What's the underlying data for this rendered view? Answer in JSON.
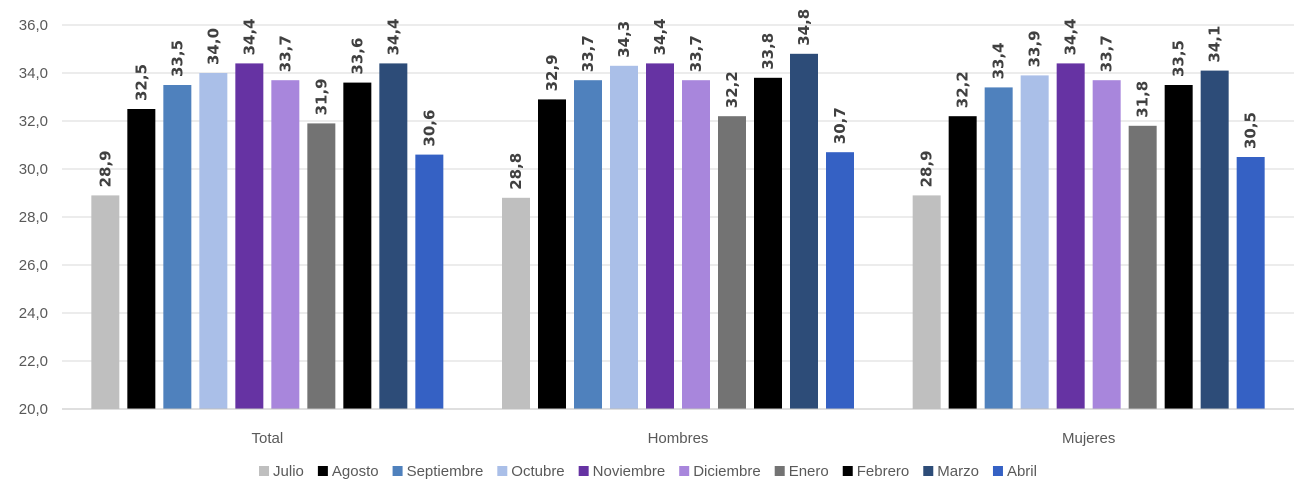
{
  "chart_data": {
    "type": "bar",
    "title": "",
    "xlabel": "",
    "ylabel": "",
    "categories": [
      "Total",
      "Hombres",
      "Mujeres"
    ],
    "ylim": [
      20,
      36
    ],
    "yticks": [
      "20,0",
      "22,0",
      "24,0",
      "26,0",
      "28,0",
      "30,0",
      "32,0",
      "34,0",
      "36,0"
    ],
    "ytick_values": [
      20,
      22,
      24,
      26,
      28,
      30,
      32,
      34,
      36
    ],
    "grid": true,
    "legend_position": "bottom",
    "series": [
      {
        "name": "Julio",
        "color": "#bfbfbf",
        "values": [
          28.9,
          28.8,
          28.9
        ],
        "labels": [
          "28,9",
          "28,8",
          "28,9"
        ]
      },
      {
        "name": "Agosto",
        "color": "#000000",
        "values": [
          32.5,
          32.9,
          32.2
        ],
        "labels": [
          "32,5",
          "32,9",
          "32,2"
        ]
      },
      {
        "name": "Septiembre",
        "color": "#4f81bd",
        "values": [
          33.5,
          33.7,
          33.4
        ],
        "labels": [
          "33,5",
          "33,7",
          "33,4"
        ]
      },
      {
        "name": "Octubre",
        "color": "#aabfe8",
        "values": [
          34.0,
          34.3,
          33.9
        ],
        "labels": [
          "34,0",
          "34,3",
          "33,9"
        ]
      },
      {
        "name": "Noviembre",
        "color": "#6633a3",
        "values": [
          34.4,
          34.4,
          34.4
        ],
        "labels": [
          "34,4",
          "34,4",
          "34,4"
        ]
      },
      {
        "name": "Diciembre",
        "color": "#a886dc",
        "values": [
          33.7,
          33.7,
          33.7
        ],
        "labels": [
          "33,7",
          "33,7",
          "33,7"
        ]
      },
      {
        "name": "Enero",
        "color": "#737373",
        "values": [
          31.9,
          32.2,
          31.8
        ],
        "labels": [
          "31,9",
          "32,2",
          "31,8"
        ]
      },
      {
        "name": "Febrero",
        "color": "#000000",
        "values": [
          33.6,
          33.8,
          33.5
        ],
        "labels": [
          "33,6",
          "33,8",
          "33,5"
        ]
      },
      {
        "name": "Marzo",
        "color": "#2d4c78",
        "values": [
          34.4,
          34.8,
          34.1
        ],
        "labels": [
          "34,4",
          "34,8",
          "34,1"
        ]
      },
      {
        "name": "Abril",
        "color": "#3561c4",
        "values": [
          30.6,
          30.7,
          30.5
        ],
        "labels": [
          "30,6",
          "30,7",
          "30,5"
        ]
      }
    ],
    "colors": {
      "gridline": "#d9d9d9",
      "axis": "#bfbfbf"
    }
  }
}
